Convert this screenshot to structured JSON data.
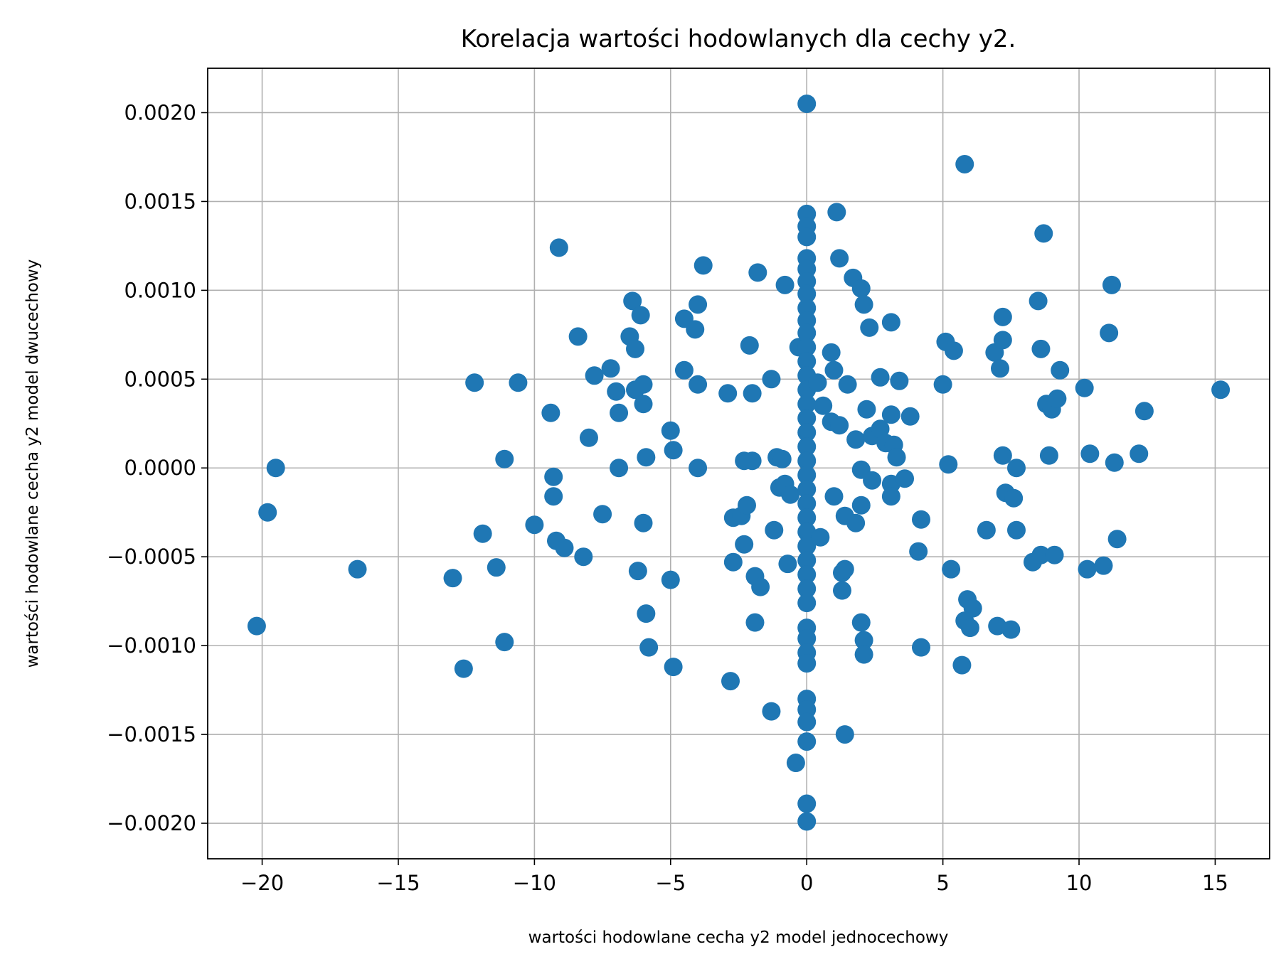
{
  "chart_data": {
    "type": "scatter",
    "title": "Korelacja wartości hodowlanych dla cechy y2.",
    "xlabel": "wartości hodowlane cecha y2 model jednocechowy",
    "ylabel": "wartości hodowlane cecha y2 model dwucechowy",
    "xlim": [
      -22,
      17
    ],
    "ylim": [
      -0.0022,
      0.00225
    ],
    "grid": true,
    "color": "#1f77b4",
    "xticks": [
      -20,
      -15,
      -10,
      -5,
      0,
      5,
      10,
      15
    ],
    "xtick_labels": [
      "−20",
      "−15",
      "−10",
      "−5",
      "0",
      "5",
      "10",
      "15"
    ],
    "yticks": [
      -0.002,
      -0.0015,
      -0.001,
      -0.0005,
      0.0,
      0.0005,
      0.001,
      0.0015,
      0.002
    ],
    "ytick_labels": [
      "−0.0020",
      "−0.0015",
      "−0.0010",
      "−0.0005",
      "0.0000",
      "0.0005",
      "0.0010",
      "0.0015",
      "0.0020"
    ],
    "points": [
      [
        -20.2,
        -0.00089
      ],
      [
        -19.8,
        -0.00025
      ],
      [
        -19.5,
        0.0
      ],
      [
        -16.5,
        -0.00057
      ],
      [
        -13.0,
        -0.00062
      ],
      [
        -12.6,
        -0.00113
      ],
      [
        -12.2,
        0.00048
      ],
      [
        -11.9,
        -0.00037
      ],
      [
        -11.4,
        -0.00056
      ],
      [
        -11.1,
        5e-05
      ],
      [
        -11.1,
        -0.00098
      ],
      [
        -10.6,
        0.00048
      ],
      [
        -10.0,
        -0.00032
      ],
      [
        -9.4,
        0.00031
      ],
      [
        -9.3,
        -5e-05
      ],
      [
        -9.3,
        -0.00016
      ],
      [
        -9.2,
        -0.00041
      ],
      [
        -9.1,
        0.00124
      ],
      [
        -8.9,
        -0.00045
      ],
      [
        -8.4,
        0.00074
      ],
      [
        -8.2,
        -0.0005
      ],
      [
        -8.0,
        0.00017
      ],
      [
        -7.8,
        0.00052
      ],
      [
        -7.5,
        -0.00026
      ],
      [
        -7.2,
        0.00056
      ],
      [
        -7.0,
        0.00043
      ],
      [
        -6.9,
        0.00031
      ],
      [
        -6.9,
        0.0
      ],
      [
        -6.5,
        0.00074
      ],
      [
        -6.4,
        0.00094
      ],
      [
        -6.3,
        0.00044
      ],
      [
        -6.3,
        0.00067
      ],
      [
        -6.2,
        -0.00058
      ],
      [
        -6.1,
        0.00086
      ],
      [
        -6.0,
        0.00036
      ],
      [
        -6.0,
        0.00047
      ],
      [
        -6.0,
        -0.00031
      ],
      [
        -5.9,
        6e-05
      ],
      [
        -5.9,
        -0.00082
      ],
      [
        -5.8,
        -0.00101
      ],
      [
        -5.0,
        0.00021
      ],
      [
        -5.0,
        -0.00063
      ],
      [
        -4.9,
        -0.00112
      ],
      [
        -4.9,
        0.0001
      ],
      [
        -4.5,
        0.00055
      ],
      [
        -4.5,
        0.00084
      ],
      [
        -4.1,
        0.00078
      ],
      [
        -4.0,
        0.00092
      ],
      [
        -4.0,
        0.00047
      ],
      [
        -4.0,
        0.0
      ],
      [
        -3.8,
        0.00114
      ],
      [
        -2.9,
        0.00042
      ],
      [
        -2.8,
        -0.0012
      ],
      [
        -2.7,
        -0.00028
      ],
      [
        -2.7,
        -0.00053
      ],
      [
        -2.4,
        -0.00027
      ],
      [
        -2.3,
        4e-05
      ],
      [
        -2.3,
        -0.00043
      ],
      [
        -2.2,
        -0.00021
      ],
      [
        -2.1,
        0.00069
      ],
      [
        -2.0,
        4e-05
      ],
      [
        -2.0,
        0.00042
      ],
      [
        -1.9,
        -0.00061
      ],
      [
        -1.9,
        -0.00087
      ],
      [
        -1.8,
        0.0011
      ],
      [
        -1.7,
        -0.00067
      ],
      [
        -1.3,
        -0.00137
      ],
      [
        -1.3,
        0.0005
      ],
      [
        -1.2,
        -0.00035
      ],
      [
        -1.1,
        6e-05
      ],
      [
        -1.0,
        -0.00011
      ],
      [
        -0.9,
        5e-05
      ],
      [
        -0.8,
        0.00103
      ],
      [
        -0.8,
        -9e-05
      ],
      [
        -0.7,
        -0.00054
      ],
      [
        -0.6,
        -0.00015
      ],
      [
        -0.4,
        -0.00166
      ],
      [
        -0.3,
        0.00068
      ],
      [
        0.0,
        0.00205
      ],
      [
        0.0,
        0.00143
      ],
      [
        0.0,
        0.00136
      ],
      [
        0.0,
        0.0013
      ],
      [
        0.0,
        0.00118
      ],
      [
        0.0,
        0.00112
      ],
      [
        0.0,
        0.00105
      ],
      [
        0.0,
        0.00098
      ],
      [
        0.0,
        0.0009
      ],
      [
        0.0,
        0.00083
      ],
      [
        0.0,
        0.00076
      ],
      [
        0.0,
        0.00068
      ],
      [
        0.0,
        0.0006
      ],
      [
        0.0,
        0.00052
      ],
      [
        0.0,
        0.00044
      ],
      [
        0.0,
        0.00036
      ],
      [
        0.0,
        0.00028
      ],
      [
        0.0,
        0.0002
      ],
      [
        0.0,
        0.00012
      ],
      [
        0.0,
        4e-05
      ],
      [
        0.0,
        -4e-05
      ],
      [
        0.0,
        -0.00012
      ],
      [
        0.0,
        -0.0002
      ],
      [
        0.0,
        -0.00028
      ],
      [
        0.0,
        -0.00036
      ],
      [
        0.0,
        -0.00044
      ],
      [
        0.0,
        -0.00052
      ],
      [
        0.0,
        -0.0006
      ],
      [
        0.0,
        -0.00068
      ],
      [
        0.0,
        -0.00076
      ],
      [
        0.0,
        -0.0009
      ],
      [
        0.0,
        -0.00096
      ],
      [
        0.0,
        -0.00104
      ],
      [
        0.0,
        -0.0011
      ],
      [
        0.0,
        -0.0013
      ],
      [
        0.0,
        -0.00136
      ],
      [
        0.0,
        -0.00143
      ],
      [
        0.0,
        -0.00154
      ],
      [
        0.0,
        -0.00189
      ],
      [
        0.0,
        -0.00199
      ],
      [
        0.4,
        0.00048
      ],
      [
        0.5,
        -0.00039
      ],
      [
        0.6,
        0.00035
      ],
      [
        0.9,
        0.00026
      ],
      [
        0.9,
        0.00065
      ],
      [
        1.0,
        -0.00016
      ],
      [
        1.0,
        0.00055
      ],
      [
        1.1,
        0.00144
      ],
      [
        1.2,
        0.00024
      ],
      [
        1.2,
        0.00118
      ],
      [
        1.3,
        -0.00069
      ],
      [
        1.3,
        -0.00059
      ],
      [
        1.4,
        -0.00027
      ],
      [
        1.4,
        -0.00057
      ],
      [
        1.4,
        -0.0015
      ],
      [
        1.5,
        0.00047
      ],
      [
        1.7,
        0.00107
      ],
      [
        1.8,
        -0.00031
      ],
      [
        1.8,
        0.00016
      ],
      [
        2.0,
        0.00101
      ],
      [
        2.0,
        -0.00087
      ],
      [
        2.0,
        -0.00021
      ],
      [
        2.0,
        -1e-05
      ],
      [
        2.1,
        0.00092
      ],
      [
        2.1,
        -0.00097
      ],
      [
        2.1,
        -0.00105
      ],
      [
        2.2,
        0.00033
      ],
      [
        2.3,
        0.00079
      ],
      [
        2.4,
        -7e-05
      ],
      [
        2.4,
        0.00018
      ],
      [
        2.7,
        0.00022
      ],
      [
        2.7,
        0.00051
      ],
      [
        2.9,
        0.00014
      ],
      [
        3.1,
        0.00082
      ],
      [
        3.1,
        0.0003
      ],
      [
        3.1,
        -9e-05
      ],
      [
        3.1,
        -0.00016
      ],
      [
        3.2,
        0.00013
      ],
      [
        3.3,
        6e-05
      ],
      [
        3.4,
        0.00049
      ],
      [
        3.6,
        -6e-05
      ],
      [
        3.8,
        0.00029
      ],
      [
        4.1,
        -0.00047
      ],
      [
        4.2,
        -0.00029
      ],
      [
        4.2,
        -0.00101
      ],
      [
        5.0,
        0.00047
      ],
      [
        5.1,
        0.00071
      ],
      [
        5.2,
        2e-05
      ],
      [
        5.3,
        -0.00057
      ],
      [
        5.4,
        0.00066
      ],
      [
        5.7,
        -0.00111
      ],
      [
        5.8,
        0.00171
      ],
      [
        5.8,
        -0.00086
      ],
      [
        5.9,
        -0.00074
      ],
      [
        6.0,
        -0.0009
      ],
      [
        6.1,
        -0.00079
      ],
      [
        6.6,
        -0.00035
      ],
      [
        6.9,
        0.00065
      ],
      [
        7.0,
        -0.00089
      ],
      [
        7.1,
        0.00056
      ],
      [
        7.2,
        7e-05
      ],
      [
        7.2,
        0.00085
      ],
      [
        7.2,
        0.00072
      ],
      [
        7.3,
        -0.00014
      ],
      [
        7.5,
        -0.00091
      ],
      [
        7.6,
        -0.00017
      ],
      [
        7.7,
        0.0
      ],
      [
        7.7,
        -0.00035
      ],
      [
        8.3,
        -0.00053
      ],
      [
        8.5,
        0.00094
      ],
      [
        8.6,
        0.00067
      ],
      [
        8.6,
        -0.00049
      ],
      [
        8.7,
        0.00132
      ],
      [
        8.8,
        0.00036
      ],
      [
        8.9,
        7e-05
      ],
      [
        9.0,
        0.00033
      ],
      [
        9.1,
        -0.00049
      ],
      [
        9.2,
        0.00039
      ],
      [
        9.3,
        0.00055
      ],
      [
        10.2,
        0.00045
      ],
      [
        10.3,
        -0.00057
      ],
      [
        10.4,
        8e-05
      ],
      [
        10.9,
        -0.00055
      ],
      [
        11.1,
        0.00076
      ],
      [
        11.2,
        0.00103
      ],
      [
        11.3,
        3e-05
      ],
      [
        11.4,
        -0.0004
      ],
      [
        12.2,
        8e-05
      ],
      [
        12.4,
        0.00032
      ],
      [
        15.2,
        0.00044
      ]
    ]
  }
}
